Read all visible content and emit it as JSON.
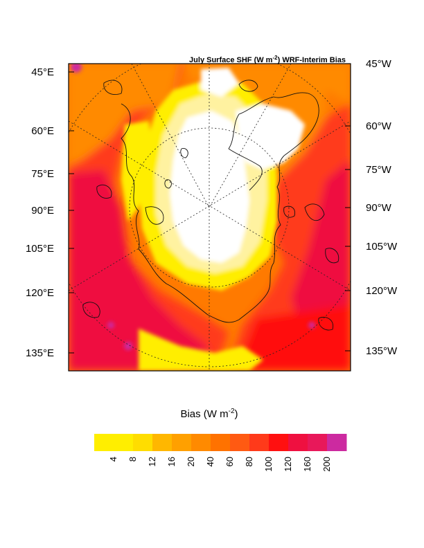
{
  "title": {
    "prefix": "July Surface SHF (W m",
    "superscript": "-2",
    "suffix": ") WRF-Interim Bias"
  },
  "left_labels": [
    "45°E",
    "60°E",
    "75°E",
    "90°E",
    "105°E",
    "120°E",
    "135°E"
  ],
  "right_labels": [
    "45°W",
    "60°W",
    "75°W",
    "90°W",
    "105°W",
    "120°W",
    "135°W"
  ],
  "colorbar": {
    "title_prefix": "Bias (W m",
    "title_superscript": "-2",
    "title_suffix": ")",
    "ticks": [
      "4",
      "8",
      "12",
      "16",
      "20",
      "40",
      "60",
      "80",
      "100",
      "120",
      "160",
      "200"
    ],
    "colors": [
      "#ffee00",
      "#ffdd00",
      "#ffb700",
      "#ffa000",
      "#ff8a00",
      "#ff7200",
      "#ff5a12",
      "#ff3a1a",
      "#ff1010",
      "#ef1040",
      "#e8185a",
      "#cc2aa0"
    ]
  },
  "map_colors": {
    "white": "#ffffff",
    "yellow": "#ffee00",
    "lightyellow": "#fff2a0",
    "orange": "#ffa000",
    "darkorange": "#ff7a00",
    "red": "#ff3a1a",
    "deepred": "#ef1040",
    "magenta": "#cc2aa0"
  }
}
